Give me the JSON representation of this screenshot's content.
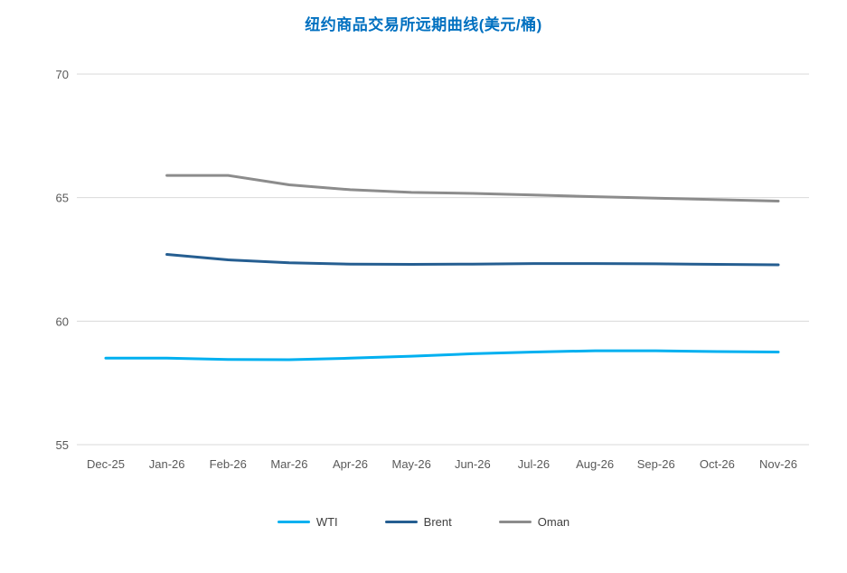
{
  "title": "纽约商品交易所远期曲线(美元/桶)",
  "colors": {
    "title": "#0070C0",
    "grid": "#D9D9D9",
    "axis_text": "#595959",
    "legend_text": "#404040",
    "background": "#FFFFFF"
  },
  "chart_data": {
    "type": "line",
    "title": "纽约商品交易所远期曲线(美元/桶)",
    "xlabel": "",
    "ylabel": "",
    "categories": [
      "Dec-25",
      "Jan-26",
      "Feb-26",
      "Mar-26",
      "Apr-26",
      "May-26",
      "Jun-26",
      "Jul-26",
      "Aug-26",
      "Sep-26",
      "Oct-26",
      "Nov-26"
    ],
    "series": [
      {
        "name": "WTI",
        "color": "#00B0F0",
        "values": [
          58.5,
          58.5,
          58.45,
          58.44,
          58.5,
          58.58,
          58.68,
          58.75,
          58.8,
          58.8,
          58.77,
          58.75
        ]
      },
      {
        "name": "Brent",
        "color": "#255E91",
        "values": [
          null,
          62.7,
          62.48,
          62.36,
          62.31,
          62.3,
          62.31,
          62.33,
          62.33,
          62.32,
          62.3,
          62.28
        ]
      },
      {
        "name": "Oman",
        "color": "#8C8C8C",
        "values": [
          null,
          65.9,
          65.9,
          65.52,
          65.32,
          65.21,
          65.17,
          65.11,
          65.04,
          64.98,
          64.92,
          64.86
        ]
      }
    ],
    "y_ticks": [
      55,
      60,
      65,
      70
    ],
    "ylim": [
      55,
      70
    ],
    "grid": "horizontal",
    "legend_position": "bottom"
  }
}
